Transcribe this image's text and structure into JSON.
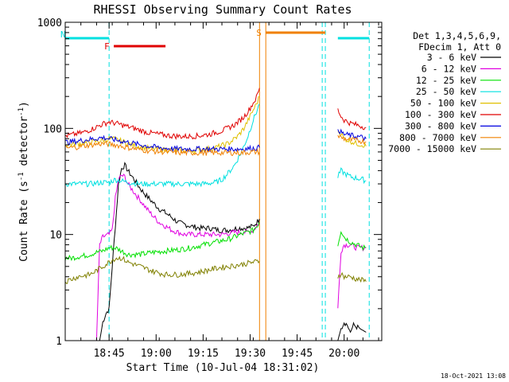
{
  "chart_data": {
    "type": "line",
    "title": "RHESSI Observing Summary Count Rates",
    "xlabel": "Start Time (10-Jul-04 18:31:02)",
    "ylabel": "Count Rate (s⁻¹ detector⁻¹)",
    "ylabel_pre": "Count Rate (s",
    "ylabel_sup1": "-1",
    "ylabel_mid": " detector",
    "ylabel_sup2": "-1",
    "ylabel_post": ")",
    "yscale": "log",
    "ylim": [
      1,
      1000
    ],
    "xlim_minutes": [
      0,
      101
    ],
    "x_ticks": [
      {
        "min": 14,
        "label": "18:45"
      },
      {
        "min": 29,
        "label": "19:00"
      },
      {
        "min": 44,
        "label": "19:15"
      },
      {
        "min": 59,
        "label": "19:30"
      },
      {
        "min": 74,
        "label": "19:45"
      },
      {
        "min": 89,
        "label": "20:00"
      }
    ],
    "y_ticks": [
      {
        "value": 1,
        "label": "1"
      },
      {
        "value": 10,
        "label": "10"
      },
      {
        "value": 100,
        "label": "100"
      },
      {
        "value": 1000,
        "label": "1000"
      }
    ],
    "legend_header": [
      "Det 1,3,4,5,6,9,",
      "FDecim 1, Att 0"
    ],
    "legend_placement": "right",
    "timestamp": "18-Oct-2021 13:08",
    "flags": [
      {
        "label": "N",
        "color": "#00e0e0",
        "segments": [
          [
            0,
            14
          ],
          [
            87,
            97
          ]
        ]
      },
      {
        "label": "F",
        "color": "#e00000",
        "segments": [
          [
            15.5,
            32
          ]
        ]
      },
      {
        "label": "S",
        "color": "#f08000",
        "segments": [
          [
            64,
            83
          ]
        ]
      }
    ],
    "markers": [
      {
        "min": 14,
        "color": "#00e0e0",
        "style": "dashed"
      },
      {
        "min": 62,
        "color": "#f08000",
        "style": "solid"
      },
      {
        "min": 64,
        "color": "#f08000",
        "style": "solid"
      },
      {
        "min": 82,
        "color": "#00e0e0",
        "style": "dashed"
      },
      {
        "min": 83,
        "color": "#00e0e0",
        "style": "dashed"
      },
      {
        "min": 97,
        "color": "#00e0e0",
        "style": "dashed"
      }
    ],
    "series": [
      {
        "name": "3 - 6 keV",
        "color": "#000000",
        "points": [
          [
            11,
            1
          ],
          [
            12,
            1.5
          ],
          [
            13,
            1.8
          ],
          [
            14,
            2
          ],
          [
            15,
            5
          ],
          [
            16,
            12
          ],
          [
            17,
            30
          ],
          [
            18,
            42
          ],
          [
            19,
            45
          ],
          [
            20,
            40
          ],
          [
            22,
            33
          ],
          [
            24,
            27
          ],
          [
            26,
            23
          ],
          [
            28,
            20
          ],
          [
            30,
            17.5
          ],
          [
            32,
            16
          ],
          [
            34,
            14.5
          ],
          [
            36,
            13
          ],
          [
            38,
            12.5
          ],
          [
            40,
            12
          ],
          [
            43,
            11.5
          ],
          [
            46,
            11.5
          ],
          [
            49,
            11
          ],
          [
            52,
            11
          ],
          [
            55,
            11.5
          ],
          [
            58,
            11.5
          ],
          [
            60,
            12
          ],
          [
            62,
            14
          ]
        ],
        "points2": [
          [
            87,
            1
          ],
          [
            88,
            1.3
          ],
          [
            89,
            1.5
          ],
          [
            90,
            1.4
          ],
          [
            91,
            1.2
          ],
          [
            92,
            1.4
          ],
          [
            94,
            1.3
          ],
          [
            96,
            1.2
          ]
        ]
      },
      {
        "name": "6 - 12 keV",
        "color": "#e000e0",
        "points": [
          [
            10,
            1
          ],
          [
            11,
            8
          ],
          [
            12,
            9.5
          ],
          [
            14,
            10
          ],
          [
            15,
            11
          ],
          [
            16,
            22
          ],
          [
            17,
            33
          ],
          [
            18,
            36
          ],
          [
            19,
            35
          ],
          [
            20,
            30
          ],
          [
            22,
            25
          ],
          [
            24,
            21
          ],
          [
            26,
            17.5
          ],
          [
            28,
            15
          ],
          [
            30,
            13
          ],
          [
            32,
            12
          ],
          [
            34,
            11
          ],
          [
            36,
            10.5
          ],
          [
            38,
            10
          ],
          [
            40,
            10
          ],
          [
            43,
            10
          ],
          [
            46,
            10
          ],
          [
            50,
            10
          ],
          [
            54,
            10.5
          ],
          [
            58,
            10.5
          ],
          [
            60,
            11
          ],
          [
            62,
            13
          ]
        ],
        "points2": [
          [
            87,
            2
          ],
          [
            88,
            7
          ],
          [
            89,
            8
          ],
          [
            91,
            8
          ],
          [
            93,
            7.5
          ],
          [
            95,
            7.5
          ],
          [
            96,
            7.5
          ]
        ]
      },
      {
        "name": "12 - 25 keV",
        "color": "#00e000",
        "points": [
          [
            0,
            6
          ],
          [
            2,
            6
          ],
          [
            4,
            6.2
          ],
          [
            6,
            6.3
          ],
          [
            8,
            6.5
          ],
          [
            10,
            6.8
          ],
          [
            12,
            7
          ],
          [
            14,
            7.5
          ],
          [
            16,
            7.5
          ],
          [
            18,
            7
          ],
          [
            20,
            6.5
          ],
          [
            24,
            6.5
          ],
          [
            28,
            6.8
          ],
          [
            32,
            7
          ],
          [
            36,
            7.2
          ],
          [
            40,
            7.5
          ],
          [
            44,
            8
          ],
          [
            48,
            8.5
          ],
          [
            52,
            9
          ],
          [
            56,
            10
          ],
          [
            60,
            11
          ],
          [
            62,
            13
          ]
        ],
        "points2": [
          [
            87,
            8
          ],
          [
            88,
            11
          ],
          [
            89,
            9.5
          ],
          [
            91,
            8.5
          ],
          [
            93,
            8
          ],
          [
            95,
            7.5
          ],
          [
            96,
            7.5
          ]
        ]
      },
      {
        "name": "25 - 50 keV",
        "color": "#00e0e0",
        "points": [
          [
            0,
            30
          ],
          [
            4,
            30
          ],
          [
            8,
            30
          ],
          [
            12,
            31
          ],
          [
            14,
            31
          ],
          [
            16,
            33
          ],
          [
            18,
            32
          ],
          [
            20,
            31
          ],
          [
            24,
            30
          ],
          [
            28,
            30
          ],
          [
            32,
            30
          ],
          [
            36,
            30
          ],
          [
            40,
            30
          ],
          [
            44,
            30
          ],
          [
            48,
            31
          ],
          [
            50,
            33
          ],
          [
            52,
            38
          ],
          [
            54,
            45
          ],
          [
            56,
            58
          ],
          [
            58,
            80
          ],
          [
            60,
            120
          ],
          [
            62,
            170
          ]
        ],
        "points2": [
          [
            87,
            35
          ],
          [
            88,
            40
          ],
          [
            89,
            38
          ],
          [
            91,
            35
          ],
          [
            93,
            34
          ],
          [
            95,
            33
          ],
          [
            96,
            32
          ]
        ]
      },
      {
        "name": "50 - 100 keV",
        "color": "#e0c000",
        "points": [
          [
            0,
            70
          ],
          [
            4,
            72
          ],
          [
            8,
            74
          ],
          [
            12,
            77
          ],
          [
            14,
            80
          ],
          [
            16,
            79
          ],
          [
            18,
            76
          ],
          [
            20,
            72
          ],
          [
            24,
            67
          ],
          [
            28,
            64
          ],
          [
            32,
            63
          ],
          [
            36,
            62
          ],
          [
            40,
            62
          ],
          [
            44,
            63
          ],
          [
            48,
            66
          ],
          [
            52,
            72
          ],
          [
            55,
            84
          ],
          [
            57,
            100
          ],
          [
            59,
            130
          ],
          [
            61,
            170
          ],
          [
            62,
            200
          ]
        ],
        "points2": [
          [
            87,
            95
          ],
          [
            88,
            90
          ],
          [
            89,
            80
          ],
          [
            91,
            76
          ],
          [
            93,
            72
          ],
          [
            95,
            70
          ],
          [
            96,
            68
          ]
        ]
      },
      {
        "name": "100 - 300 keV",
        "color": "#e00000",
        "points": [
          [
            0,
            85
          ],
          [
            3,
            88
          ],
          [
            6,
            92
          ],
          [
            9,
            100
          ],
          [
            12,
            110
          ],
          [
            14,
            115
          ],
          [
            16,
            112
          ],
          [
            18,
            108
          ],
          [
            20,
            104
          ],
          [
            23,
            98
          ],
          [
            26,
            92
          ],
          [
            30,
            88
          ],
          [
            34,
            85
          ],
          [
            38,
            84
          ],
          [
            42,
            85
          ],
          [
            46,
            88
          ],
          [
            50,
            95
          ],
          [
            54,
            108
          ],
          [
            57,
            128
          ],
          [
            59,
            155
          ],
          [
            61,
            195
          ],
          [
            62,
            240
          ]
        ],
        "points2": [
          [
            87,
            150
          ],
          [
            88,
            130
          ],
          [
            89,
            120
          ],
          [
            91,
            112
          ],
          [
            93,
            108
          ],
          [
            95,
            104
          ],
          [
            96,
            102
          ]
        ]
      },
      {
        "name": "300 - 800 keV",
        "color": "#0000e0",
        "points": [
          [
            0,
            74
          ],
          [
            4,
            76
          ],
          [
            8,
            79
          ],
          [
            12,
            82
          ],
          [
            14,
            80
          ],
          [
            16,
            78
          ],
          [
            18,
            76
          ],
          [
            20,
            74
          ],
          [
            24,
            70
          ],
          [
            28,
            67
          ],
          [
            32,
            65
          ],
          [
            36,
            64
          ],
          [
            40,
            64
          ],
          [
            44,
            64
          ],
          [
            48,
            64
          ],
          [
            52,
            64
          ],
          [
            56,
            64
          ],
          [
            60,
            65
          ],
          [
            62,
            66
          ]
        ],
        "points2": [
          [
            87,
            100
          ],
          [
            88,
            92
          ],
          [
            89,
            88
          ],
          [
            91,
            86
          ],
          [
            93,
            84
          ],
          [
            95,
            82
          ],
          [
            96,
            80
          ]
        ]
      },
      {
        "name": "800 - 7000 keV",
        "color": "#f08000",
        "points": [
          [
            0,
            65
          ],
          [
            4,
            67
          ],
          [
            8,
            70
          ],
          [
            12,
            72
          ],
          [
            14,
            71
          ],
          [
            16,
            70
          ],
          [
            18,
            68
          ],
          [
            20,
            66
          ],
          [
            24,
            63
          ],
          [
            28,
            61
          ],
          [
            32,
            60
          ],
          [
            36,
            59
          ],
          [
            40,
            59
          ],
          [
            44,
            59
          ],
          [
            48,
            59
          ],
          [
            52,
            59
          ],
          [
            56,
            59
          ],
          [
            60,
            60
          ],
          [
            62,
            60
          ]
        ],
        "points2": [
          [
            87,
            85
          ],
          [
            88,
            82
          ],
          [
            89,
            80
          ],
          [
            91,
            78
          ],
          [
            93,
            77
          ],
          [
            95,
            76
          ],
          [
            96,
            75
          ]
        ]
      },
      {
        "name": "7000 - 15000 keV",
        "color": "#808000",
        "points": [
          [
            0,
            3.6
          ],
          [
            4,
            4
          ],
          [
            8,
            4.2
          ],
          [
            12,
            5
          ],
          [
            14,
            5.5
          ],
          [
            16,
            6
          ],
          [
            18,
            6
          ],
          [
            20,
            5.5
          ],
          [
            24,
            5
          ],
          [
            28,
            4.5
          ],
          [
            32,
            4.2
          ],
          [
            36,
            4.2
          ],
          [
            40,
            4.3
          ],
          [
            44,
            4.5
          ],
          [
            48,
            4.8
          ],
          [
            52,
            5
          ],
          [
            56,
            5.2
          ],
          [
            60,
            5.5
          ],
          [
            62,
            5.6
          ]
        ],
        "points2": [
          [
            87,
            4
          ],
          [
            88,
            4.3
          ],
          [
            89,
            4
          ],
          [
            91,
            4
          ],
          [
            93,
            3.8
          ],
          [
            95,
            3.7
          ],
          [
            96,
            3.6
          ]
        ]
      }
    ]
  }
}
